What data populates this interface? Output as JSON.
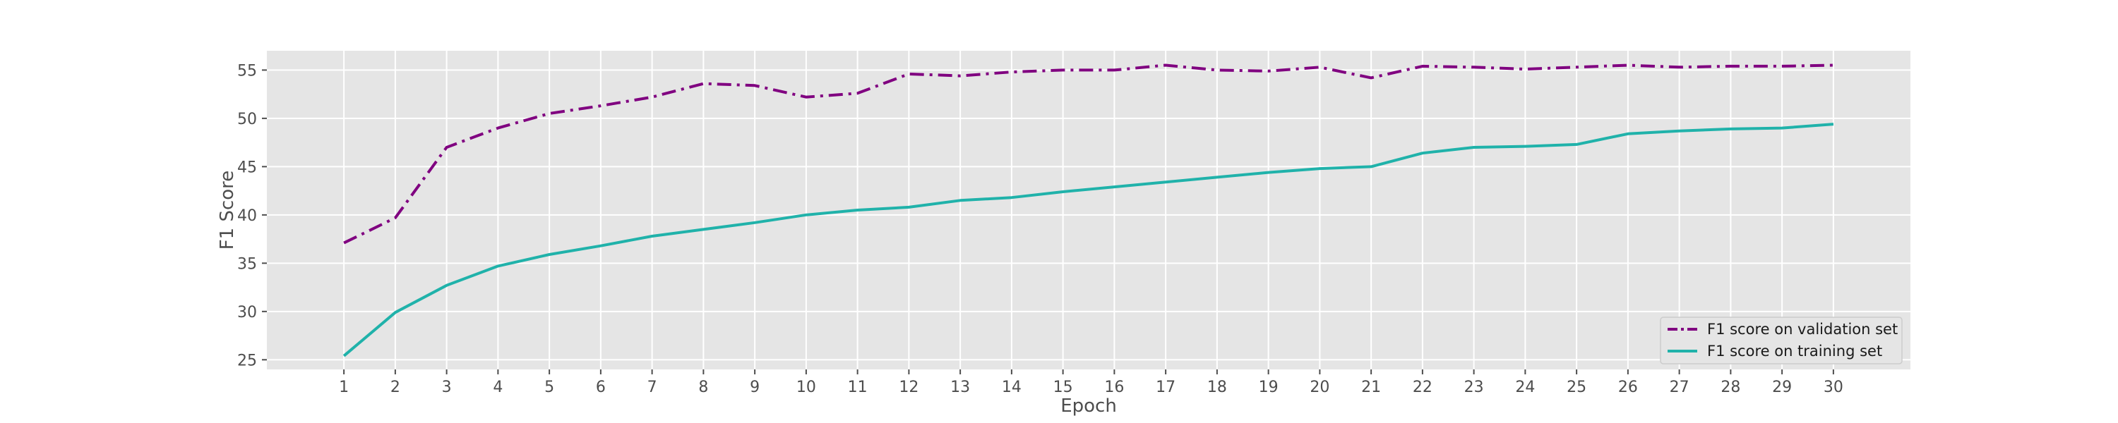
{
  "chart_data": {
    "type": "line",
    "title": "",
    "xlabel": "Epoch",
    "ylabel": "F1 Score",
    "x": [
      1,
      2,
      3,
      4,
      5,
      6,
      7,
      8,
      9,
      10,
      11,
      12,
      13,
      14,
      15,
      16,
      17,
      18,
      19,
      20,
      21,
      22,
      23,
      24,
      25,
      26,
      27,
      28,
      29,
      30
    ],
    "xlim": [
      -0.5,
      31.5
    ],
    "ylim": [
      24,
      57
    ],
    "yticks": [
      25,
      30,
      35,
      40,
      45,
      50,
      55
    ],
    "grid": true,
    "legend_position": "lower-right",
    "series": [
      {
        "name": "F1 score on validation set",
        "color": "#800080",
        "line_style": "dashdot",
        "values": [
          37.1,
          39.7,
          47.0,
          49.0,
          50.5,
          51.3,
          52.2,
          53.6,
          53.4,
          52.2,
          52.6,
          54.6,
          54.4,
          54.8,
          55.0,
          55.0,
          55.5,
          55.0,
          54.9,
          55.3,
          54.2,
          55.4,
          55.3,
          55.1,
          55.3,
          55.5,
          55.3,
          55.4,
          55.4,
          55.5
        ]
      },
      {
        "name": "F1 score on training set",
        "color": "#20b2aa",
        "line_style": "solid",
        "values": [
          25.4,
          29.9,
          32.7,
          34.7,
          35.9,
          36.8,
          37.8,
          38.5,
          39.2,
          40.0,
          40.5,
          40.8,
          41.5,
          41.8,
          42.4,
          42.9,
          43.4,
          43.9,
          44.4,
          44.8,
          45.0,
          46.4,
          47.0,
          47.1,
          47.3,
          48.4,
          48.7,
          48.9,
          49.0,
          49.4
        ]
      }
    ]
  }
}
